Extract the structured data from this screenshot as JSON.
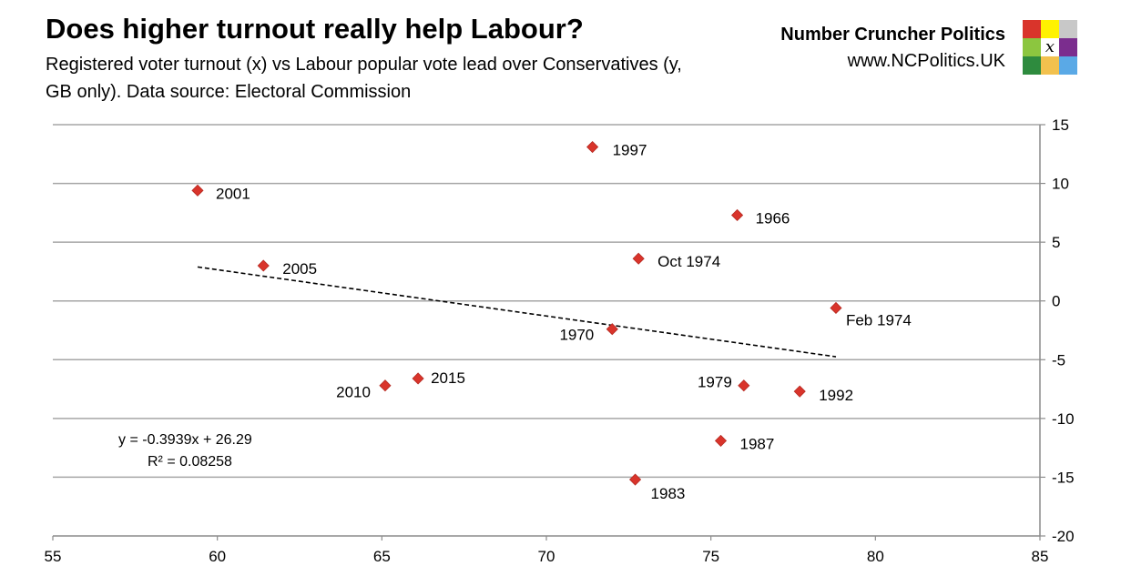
{
  "header": {
    "title": "Does higher turnout really help Labour?",
    "subtitle": "Registered voter turnout (x) vs Labour popular vote lead over Conservatives (y, GB only). Data source: Electoral Commission",
    "brand_name": "Number Cruncher Politics",
    "brand_url": "www.NCPolitics.UK",
    "logo_mark": "x",
    "logo_colors": [
      "#d9342b",
      "#fff200",
      "#c8c8c8",
      "#8cc63f",
      "#ffffff",
      "#7b2d8e",
      "#2e8b3e",
      "#f2c14e",
      "#5aa9e6"
    ]
  },
  "chart_data": {
    "type": "scatter",
    "xlim": [
      55,
      85
    ],
    "ylim": [
      -20,
      15
    ],
    "x_ticks": [
      "55",
      "60",
      "65",
      "70",
      "75",
      "80",
      "85"
    ],
    "y_ticks": [
      "15",
      "10",
      "5",
      "0",
      "-5",
      "-10",
      "-15",
      "-20"
    ],
    "y_axis_side": "right",
    "grid": "horizontal",
    "marker_color": "#d9342b",
    "points": [
      {
        "label": "1997",
        "x": 71.4,
        "y": 13.1
      },
      {
        "label": "2001",
        "x": 59.4,
        "y": 9.4
      },
      {
        "label": "1966",
        "x": 75.8,
        "y": 7.3
      },
      {
        "label": "Oct 1974",
        "x": 72.8,
        "y": 3.6
      },
      {
        "label": "2005",
        "x": 61.4,
        "y": 3.0
      },
      {
        "label": "Feb 1974",
        "x": 78.8,
        "y": -0.6
      },
      {
        "label": "1970",
        "x": 72.0,
        "y": -2.4
      },
      {
        "label": "2015",
        "x": 66.1,
        "y": -6.6
      },
      {
        "label": "2010",
        "x": 65.1,
        "y": -7.2
      },
      {
        "label": "1979",
        "x": 76.0,
        "y": -7.2
      },
      {
        "label": "1992",
        "x": 77.7,
        "y": -7.7
      },
      {
        "label": "1987",
        "x": 75.3,
        "y": -11.9
      },
      {
        "label": "1983",
        "x": 72.7,
        "y": -15.2
      }
    ],
    "trendline": {
      "slope": -0.3939,
      "intercept": 26.29,
      "x_range": [
        59.4,
        78.8
      ],
      "equation": "y = -0.3939x + 26.29",
      "r_squared": "R² = 0.08258"
    }
  }
}
